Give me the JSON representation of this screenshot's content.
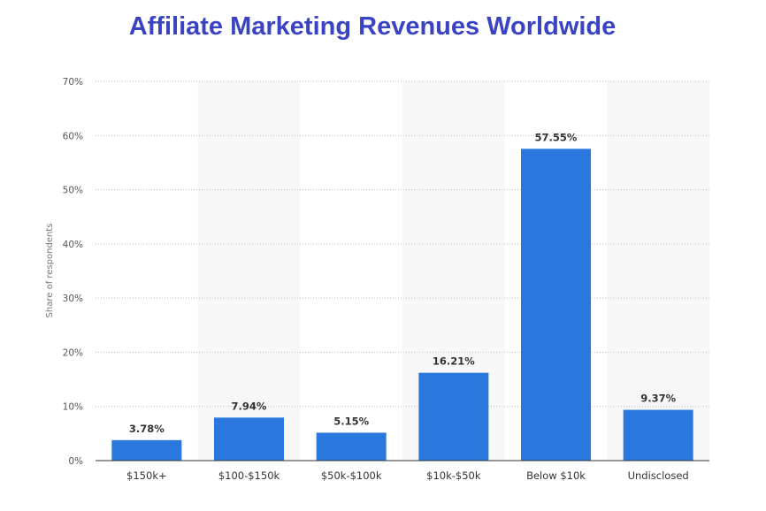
{
  "chart_data": {
    "type": "bar",
    "title": "Affiliate Marketing Revenues Worldwide",
    "ylabel": "Share of respondents",
    "xlabel": "",
    "categories": [
      "$150k+",
      "$100-$150k",
      "$50k-$100k",
      "$10k-$50k",
      "Below $10k",
      "Undisclosed"
    ],
    "values": [
      3.78,
      7.94,
      5.15,
      16.21,
      57.55,
      9.37
    ],
    "value_labels": [
      "3.78%",
      "7.94%",
      "5.15%",
      "16.21%",
      "57.55%",
      "9.37%"
    ],
    "yticks": [
      "0%",
      "10%",
      "20%",
      "30%",
      "40%",
      "50%",
      "60%",
      "70%"
    ],
    "ylim": [
      0,
      70
    ],
    "grid": "horizontal-dotted",
    "bar_color": "#2a78dd"
  }
}
